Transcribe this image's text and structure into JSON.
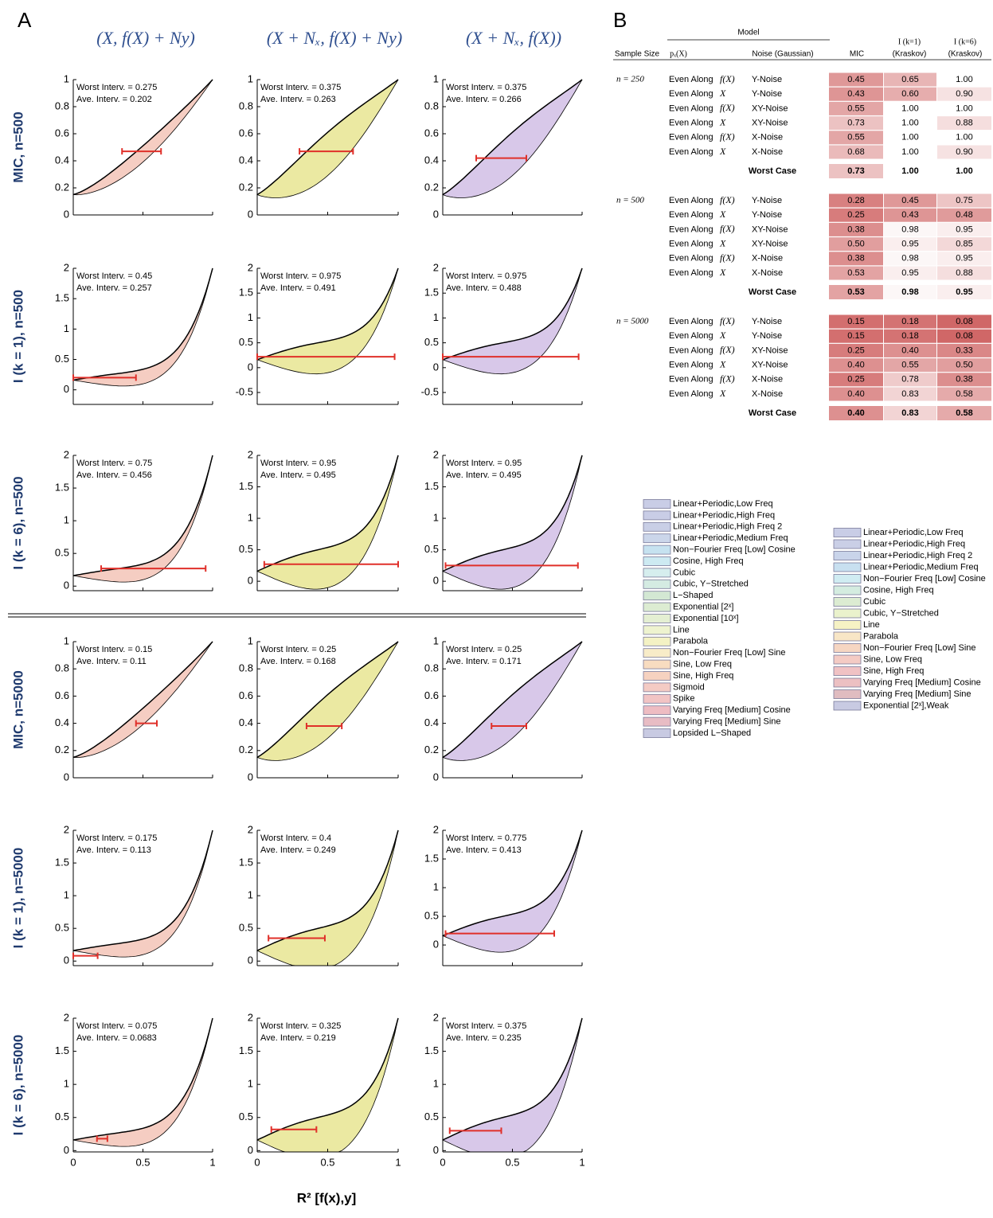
{
  "panel_a": {
    "label": "A",
    "column_titles": [
      "(X,  f(X) + Ny)",
      "(X + Nₓ,  f(X) + Ny)",
      "(X + Nₓ,  f(X))"
    ],
    "row_labels": [
      "MIC,  n=500",
      "I (k = 1),  n=500",
      "I (k = 6),  n=500",
      "MIC,  n=5000",
      "I (k = 1),  n=5000",
      "I (k = 6),  n=5000"
    ],
    "x_axis_label": "R² [f(x),y]",
    "xlim": [
      0,
      1
    ],
    "xticks": [
      0,
      0.5,
      1
    ],
    "rows": [
      {
        "panels": [
          {
            "worst": "Worst Interv. = 0.275",
            "ave": "Ave.  Interv. = 0.202",
            "ylim": [
              0,
              1
            ],
            "yticks": [
              0,
              0.2,
              0.4,
              0.6,
              0.8,
              1
            ],
            "interval": [
              0.35,
              0.63
            ],
            "interval_y": 0.47
          },
          {
            "worst": "Worst Interv. = 0.375",
            "ave": "Ave.  Interv. = 0.263",
            "ylim": [
              0,
              1
            ],
            "yticks": [
              0,
              0.2,
              0.4,
              0.6,
              0.8,
              1
            ],
            "interval": [
              0.3,
              0.68
            ],
            "interval_y": 0.47
          },
          {
            "worst": "Worst Interv. = 0.375",
            "ave": "Ave.  Interv. = 0.266",
            "ylim": [
              0,
              1
            ],
            "yticks": [
              0,
              0.2,
              0.4,
              0.6,
              0.8,
              1
            ],
            "interval": [
              0.24,
              0.6
            ],
            "interval_y": 0.42
          }
        ]
      },
      {
        "panels": [
          {
            "worst": "Worst Interv. = 0.45",
            "ave": "Ave.  Interv. = 0.257",
            "ylim": [
              -0.24,
              2
            ],
            "yticks": [
              0,
              0.5,
              1,
              1.5,
              2
            ],
            "interval": [
              0,
              0.45
            ],
            "interval_y": 0.2
          },
          {
            "worst": "Worst Interv. = 0.975",
            "ave": "Ave.  Interv. = 0.491",
            "ylim": [
              -0.74,
              2
            ],
            "yticks": [
              -0.5,
              0,
              0.5,
              1,
              1.5,
              2
            ],
            "interval": [
              0,
              0.975
            ],
            "interval_y": 0.22
          },
          {
            "worst": "Worst Interv. = 0.975",
            "ave": "Ave.  Interv. = 0.488",
            "ylim": [
              -0.74,
              2
            ],
            "yticks": [
              -0.5,
              0,
              0.5,
              1,
              1.5,
              2
            ],
            "interval": [
              0,
              0.975
            ],
            "interval_y": 0.22
          }
        ]
      },
      {
        "panels": [
          {
            "worst": "Worst Interv. = 0.75",
            "ave": "Ave.  Interv. = 0.456",
            "ylim": [
              -0.07,
              2
            ],
            "yticks": [
              0,
              0.5,
              1,
              1.5,
              2
            ],
            "interval": [
              0.2,
              0.95
            ],
            "interval_y": 0.27
          },
          {
            "worst": "Worst Interv. = 0.95",
            "ave": "Ave.  Interv. = 0.495",
            "ylim": [
              -0.15,
              2
            ],
            "yticks": [
              0,
              0.5,
              1,
              1.5,
              2
            ],
            "interval": [
              0.05,
              1
            ],
            "interval_y": 0.27
          },
          {
            "worst": "Worst Interv. = 0.95",
            "ave": "Ave.  Interv. = 0.495",
            "ylim": [
              -0.15,
              2
            ],
            "yticks": [
              0,
              0.5,
              1,
              1.5,
              2
            ],
            "interval": [
              0.02,
              0.97
            ],
            "interval_y": 0.25
          }
        ]
      },
      {
        "panels": [
          {
            "worst": "Worst Interv. = 0.15",
            "ave": "Ave.  Interv. = 0.11",
            "ylim": [
              0,
              1
            ],
            "yticks": [
              0,
              0.2,
              0.4,
              0.6,
              0.8,
              1
            ],
            "interval": [
              0.45,
              0.6
            ],
            "interval_y": 0.4
          },
          {
            "worst": "Worst Interv. = 0.25",
            "ave": "Ave.  Interv. = 0.168",
            "ylim": [
              0,
              1
            ],
            "yticks": [
              0,
              0.2,
              0.4,
              0.6,
              0.8,
              1
            ],
            "interval": [
              0.35,
              0.6
            ],
            "interval_y": 0.38
          },
          {
            "worst": "Worst Interv. = 0.25",
            "ave": "Ave.  Interv. = 0.171",
            "ylim": [
              0,
              1
            ],
            "yticks": [
              0,
              0.2,
              0.4,
              0.6,
              0.8,
              1
            ],
            "interval": [
              0.35,
              0.6
            ],
            "interval_y": 0.38
          }
        ]
      },
      {
        "panels": [
          {
            "worst": "Worst Interv. = 0.175",
            "ave": "Ave.  Interv. = 0.113",
            "ylim": [
              -0.07,
              2
            ],
            "yticks": [
              0,
              0.5,
              1,
              1.5,
              2
            ],
            "interval": [
              0,
              0.175
            ],
            "interval_y": 0.08
          },
          {
            "worst": "Worst Interv. = 0.4",
            "ave": "Ave.  Interv. = 0.249",
            "ylim": [
              -0.07,
              2
            ],
            "yticks": [
              0,
              0.5,
              1,
              1.5,
              2
            ],
            "interval": [
              0.08,
              0.48
            ],
            "interval_y": 0.35
          },
          {
            "worst": "Worst Interv. = 0.775",
            "ave": "Ave.  Interv. = 0.413",
            "ylim": [
              -0.36,
              2
            ],
            "yticks": [
              0,
              0.5,
              1,
              1.5,
              2
            ],
            "interval": [
              0.02,
              0.8
            ],
            "interval_y": 0.2
          }
        ]
      },
      {
        "panels": [
          {
            "worst": "Worst Interv. = 0.075",
            "ave": "Ave.  Interv. = 0.0683",
            "ylim": [
              -0.02,
              2
            ],
            "yticks": [
              0,
              0.5,
              1,
              1.5,
              2
            ],
            "interval": [
              0.17,
              0.245
            ],
            "interval_y": 0.18
          },
          {
            "worst": "Worst Interv. = 0.325",
            "ave": "Ave.  Interv. = 0.219",
            "ylim": [
              -0.02,
              2
            ],
            "yticks": [
              0,
              0.5,
              1,
              1.5,
              2
            ],
            "interval": [
              0.1,
              0.42
            ],
            "interval_y": 0.32
          },
          {
            "worst": "Worst Interv. = 0.375",
            "ave": "Ave.  Interv. = 0.235",
            "ylim": [
              -0.02,
              2
            ],
            "yticks": [
              0,
              0.5,
              1,
              1.5,
              2
            ],
            "interval": [
              0.05,
              0.42
            ],
            "interval_y": 0.3
          }
        ]
      }
    ]
  },
  "panel_b": {
    "label": "B",
    "model_header": "Model",
    "headers": [
      "Sample Size",
      "pₓ(X)",
      "Noise (Gaussian)",
      "MIC",
      "I (k=1)",
      "(Kraskov)",
      "I (k=6)",
      "(Kraskov)"
    ],
    "groups": [
      {
        "sample_size": "n = 250",
        "rows": [
          [
            "Even Along",
            "f(X)",
            "Y-Noise",
            "0.45",
            "0.65",
            "1.00"
          ],
          [
            "Even Along",
            "X",
            "Y-Noise",
            "0.43",
            "0.60",
            "0.90"
          ],
          [
            "Even Along",
            "f(X)",
            "XY-Noise",
            "0.55",
            "1.00",
            "1.00"
          ],
          [
            "Even Along",
            "X",
            "XY-Noise",
            "0.73",
            "1.00",
            "0.88"
          ],
          [
            "Even Along",
            "f(X)",
            "X-Noise",
            "0.55",
            "1.00",
            "1.00"
          ],
          [
            "Even Along",
            "X",
            "X-Noise",
            "0.68",
            "1.00",
            "0.90"
          ]
        ],
        "worst_label": "Worst Case",
        "worst": [
          "0.73",
          "1.00",
          "1.00"
        ]
      },
      {
        "sample_size": "n = 500",
        "rows": [
          [
            "Even Along",
            "f(X)",
            "Y-Noise",
            "0.28",
            "0.45",
            "0.75"
          ],
          [
            "Even Along",
            "X",
            "Y-Noise",
            "0.25",
            "0.43",
            "0.48"
          ],
          [
            "Even Along",
            "f(X)",
            "XY-Noise",
            "0.38",
            "0.98",
            "0.95"
          ],
          [
            "Even Along",
            "X",
            "XY-Noise",
            "0.50",
            "0.95",
            "0.85"
          ],
          [
            "Even Along",
            "f(X)",
            "X-Noise",
            "0.38",
            "0.98",
            "0.95"
          ],
          [
            "Even Along",
            "X",
            "X-Noise",
            "0.53",
            "0.95",
            "0.88"
          ]
        ],
        "worst_label": "Worst Case",
        "worst": [
          "0.53",
          "0.98",
          "0.95"
        ]
      },
      {
        "sample_size": "n = 5000",
        "rows": [
          [
            "Even Along",
            "f(X)",
            "Y-Noise",
            "0.15",
            "0.18",
            "0.08"
          ],
          [
            "Even Along",
            "X",
            "Y-Noise",
            "0.15",
            "0.18",
            "0.08"
          ],
          [
            "Even Along",
            "f(X)",
            "XY-Noise",
            "0.25",
            "0.40",
            "0.33"
          ],
          [
            "Even Along",
            "X",
            "XY-Noise",
            "0.40",
            "0.55",
            "0.50"
          ],
          [
            "Even Along",
            "f(X)",
            "X-Noise",
            "0.25",
            "0.78",
            "0.38"
          ],
          [
            "Even Along",
            "X",
            "X-Noise",
            "0.40",
            "0.83",
            "0.58"
          ]
        ],
        "worst_label": "Worst Case",
        "worst": [
          "0.40",
          "0.83",
          "0.58"
        ]
      }
    ]
  },
  "legends": [
    {
      "items": [
        {
          "label": "Linear+Periodic,Low Freq",
          "color": "#c9cde6"
        },
        {
          "label": "Linear+Periodic,High Freq",
          "color": "#c9cde6"
        },
        {
          "label": "Linear+Periodic,High Freq 2",
          "color": "#c9cfe6"
        },
        {
          "label": "Linear+Periodic,Medium Freq",
          "color": "#cbd6ea"
        },
        {
          "label": "Non−Fourier Freq [Low] Cosine",
          "color": "#c6e2f0"
        },
        {
          "label": "Cosine, High Freq",
          "color": "#cdeaf2"
        },
        {
          "label": "Cubic",
          "color": "#d6eeee"
        },
        {
          "label": "Cubic, Y−Stretched",
          "color": "#d4ebe2"
        },
        {
          "label": "L−Shaped",
          "color": "#d3e8d3"
        },
        {
          "label": "Exponential [2ˣ]",
          "color": "#dcecd2"
        },
        {
          "label": "Exponential [10ˣ]",
          "color": "#e4efd2"
        },
        {
          "label": "Line",
          "color": "#eef3cf"
        },
        {
          "label": "Parabola",
          "color": "#f4f2c4"
        },
        {
          "label": "Non−Fourier Freq [Low] Sine",
          "color": "#f8ecc8"
        },
        {
          "label": "Sine, Low Freq",
          "color": "#f8dcc0"
        },
        {
          "label": "Sine, High Freq",
          "color": "#f6d2c0"
        },
        {
          "label": "Sigmoid",
          "color": "#f4cbc4"
        },
        {
          "label": "Spike",
          "color": "#f2c4c4"
        },
        {
          "label": "Varying Freq [Medium] Cosine",
          "color": "#eebcc2"
        },
        {
          "label": "Varying Freq [Medium] Sine",
          "color": "#e8bcc4"
        },
        {
          "label": "Lopsided L−Shaped",
          "color": "#c8cae2"
        }
      ]
    },
    {
      "items": [
        {
          "label": "Linear+Periodic,Low Freq",
          "color": "#c9cde6"
        },
        {
          "label": "Linear+Periodic,High Freq",
          "color": "#cacfe6"
        },
        {
          "label": "Linear+Periodic,High Freq 2",
          "color": "#c9d4ea"
        },
        {
          "label": "Linear+Periodic,Medium Freq",
          "color": "#c8e0f0"
        },
        {
          "label": "Non−Fourier Freq [Low] Cosine",
          "color": "#d0ecf2"
        },
        {
          "label": "Cosine, High Freq",
          "color": "#d4ece0"
        },
        {
          "label": "Cubic",
          "color": "#dcecd2"
        },
        {
          "label": "Cubic, Y−Stretched",
          "color": "#eaf2cc"
        },
        {
          "label": "Line",
          "color": "#f6f2c4"
        },
        {
          "label": "Parabola",
          "color": "#f8e6c6"
        },
        {
          "label": "Non−Fourier Freq [Low] Sine",
          "color": "#f6d6c2"
        },
        {
          "label": "Sine, Low Freq",
          "color": "#f4cbc4"
        },
        {
          "label": "Sine, High Freq",
          "color": "#f0c2c4"
        },
        {
          "label": "Varying Freq [Medium] Cosine",
          "color": "#ecc0c2"
        },
        {
          "label": "Varying Freq [Medium] Sine",
          "color": "#e0bcc0"
        },
        {
          "label": "Exponential [2ˣ],Weak",
          "color": "#c8cae2"
        }
      ]
    }
  ]
}
